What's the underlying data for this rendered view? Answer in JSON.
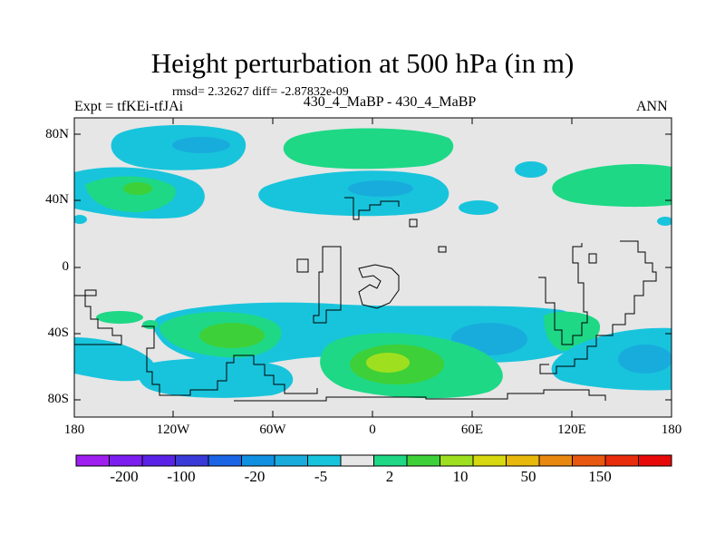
{
  "title": "Height perturbation at 500 hPa (in m)",
  "stats": "rmsd= 2.32627 diff= -2.87832e-09",
  "experiment_label": "Expt = tfKEi-tfJAi",
  "case_label": "430_4_MaBP - 430_4_MaBP",
  "season": "ANN",
  "lat_ticks": [
    "80N",
    "40N",
    "0",
    "40S",
    "80S"
  ],
  "lon_ticks": [
    "180",
    "120W",
    "60W",
    "0",
    "60E",
    "120E",
    "180"
  ],
  "colorbar": {
    "labels": [
      "-200",
      "-100",
      "-20",
      "-5",
      "2",
      "10",
      "50",
      "150"
    ],
    "colors": [
      "#9f1ff0",
      "#7d1ef0",
      "#5a22e6",
      "#3a3ad8",
      "#1a64e6",
      "#1090e0",
      "#18acdc",
      "#18c4dc",
      "#e6e6e6",
      "#1ed886",
      "#3ed038",
      "#9ee020",
      "#d8d80e",
      "#e8b80a",
      "#e88810",
      "#e85810",
      "#e82c0c",
      "#e80a0a"
    ]
  },
  "map_colors": {
    "background": "#e6e6e6",
    "neg_light": "#18c4dc",
    "neg_mid": "#18acdc",
    "neg_strong": "#1090e0",
    "pos_light": "#1ed886",
    "pos_mid": "#3ed038",
    "pos_strong": "#9ee020"
  }
}
